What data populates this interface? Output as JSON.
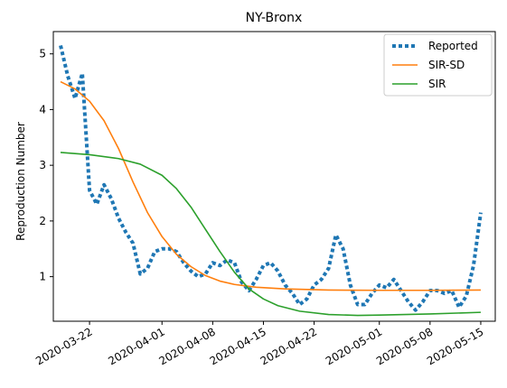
{
  "chart_data": {
    "type": "line",
    "title": "NY-Bronx",
    "xlabel": "",
    "ylabel": "Reproduction Number",
    "x_tick_labels": [
      "2020-03-22",
      "2020-04-01",
      "2020-04-08",
      "2020-04-15",
      "2020-04-22",
      "2020-05-01",
      "2020-05-08",
      "2020-05-15"
    ],
    "x_ticks": [
      "2020-03-22",
      "2020-04-01",
      "2020-04-08",
      "2020-04-15",
      "2020-04-22",
      "2020-05-01",
      "2020-05-08",
      "2020-05-15"
    ],
    "xlim": [
      "2020-03-17",
      "2020-05-17"
    ],
    "y_ticks": [
      1,
      2,
      3,
      4,
      5
    ],
    "ylim": [
      0.2,
      5.4
    ],
    "grid": false,
    "legend_position": "top-right",
    "series": [
      {
        "name": "Reported",
        "color": "#1f77b4",
        "style": "dotted",
        "points": [
          [
            "2020-03-18",
            5.15
          ],
          [
            "2020-03-19",
            4.6
          ],
          [
            "2020-03-20",
            4.2
          ],
          [
            "2020-03-21",
            4.65
          ],
          [
            "2020-03-22",
            2.55
          ],
          [
            "2020-03-23",
            2.3
          ],
          [
            "2020-03-24",
            2.65
          ],
          [
            "2020-03-25",
            2.4
          ],
          [
            "2020-03-26",
            2.05
          ],
          [
            "2020-03-27",
            1.8
          ],
          [
            "2020-03-28",
            1.6
          ],
          [
            "2020-03-29",
            1.05
          ],
          [
            "2020-03-30",
            1.15
          ],
          [
            "2020-03-31",
            1.45
          ],
          [
            "2020-04-01",
            1.5
          ],
          [
            "2020-04-02",
            1.5
          ],
          [
            "2020-04-03",
            1.45
          ],
          [
            "2020-04-04",
            1.25
          ],
          [
            "2020-04-05",
            1.1
          ],
          [
            "2020-04-06",
            1.0
          ],
          [
            "2020-04-07",
            1.05
          ],
          [
            "2020-04-08",
            1.25
          ],
          [
            "2020-04-09",
            1.2
          ],
          [
            "2020-04-10",
            1.3
          ],
          [
            "2020-04-11",
            1.25
          ],
          [
            "2020-04-12",
            0.9
          ],
          [
            "2020-04-13",
            0.75
          ],
          [
            "2020-04-14",
            0.95
          ],
          [
            "2020-04-15",
            1.2
          ],
          [
            "2020-04-16",
            1.25
          ],
          [
            "2020-04-17",
            1.1
          ],
          [
            "2020-04-18",
            0.85
          ],
          [
            "2020-04-19",
            0.7
          ],
          [
            "2020-04-20",
            0.5
          ],
          [
            "2020-04-21",
            0.6
          ],
          [
            "2020-04-22",
            0.85
          ],
          [
            "2020-04-23",
            0.95
          ],
          [
            "2020-04-24",
            1.15
          ],
          [
            "2020-04-25",
            1.75
          ],
          [
            "2020-04-26",
            1.5
          ],
          [
            "2020-04-27",
            0.85
          ],
          [
            "2020-04-28",
            0.5
          ],
          [
            "2020-04-29",
            0.5
          ],
          [
            "2020-04-30",
            0.7
          ],
          [
            "2020-05-01",
            0.85
          ],
          [
            "2020-05-02",
            0.8
          ],
          [
            "2020-05-03",
            0.95
          ],
          [
            "2020-05-04",
            0.75
          ],
          [
            "2020-05-05",
            0.55
          ],
          [
            "2020-05-06",
            0.4
          ],
          [
            "2020-05-07",
            0.55
          ],
          [
            "2020-05-08",
            0.75
          ],
          [
            "2020-05-09",
            0.75
          ],
          [
            "2020-05-10",
            0.7
          ],
          [
            "2020-05-11",
            0.75
          ],
          [
            "2020-05-12",
            0.45
          ],
          [
            "2020-05-13",
            0.65
          ],
          [
            "2020-05-14",
            1.2
          ],
          [
            "2020-05-15",
            2.15
          ]
        ]
      },
      {
        "name": "SIR-SD",
        "color": "#ff7f0e",
        "style": "solid",
        "points": [
          [
            "2020-03-18",
            4.5
          ],
          [
            "2020-03-20",
            4.37
          ],
          [
            "2020-03-22",
            4.15
          ],
          [
            "2020-03-24",
            3.8
          ],
          [
            "2020-03-26",
            3.3
          ],
          [
            "2020-03-28",
            2.7
          ],
          [
            "2020-03-30",
            2.15
          ],
          [
            "2020-04-01",
            1.72
          ],
          [
            "2020-04-03",
            1.4
          ],
          [
            "2020-04-05",
            1.18
          ],
          [
            "2020-04-07",
            1.02
          ],
          [
            "2020-04-09",
            0.92
          ],
          [
            "2020-04-11",
            0.86
          ],
          [
            "2020-04-14",
            0.81
          ],
          [
            "2020-04-18",
            0.78
          ],
          [
            "2020-04-24",
            0.76
          ],
          [
            "2020-05-01",
            0.755
          ],
          [
            "2020-05-08",
            0.755
          ],
          [
            "2020-05-15",
            0.76
          ]
        ]
      },
      {
        "name": "SIR",
        "color": "#2ca02c",
        "style": "solid",
        "points": [
          [
            "2020-03-18",
            3.23
          ],
          [
            "2020-03-22",
            3.19
          ],
          [
            "2020-03-26",
            3.12
          ],
          [
            "2020-03-29",
            3.02
          ],
          [
            "2020-04-01",
            2.82
          ],
          [
            "2020-04-03",
            2.58
          ],
          [
            "2020-04-05",
            2.25
          ],
          [
            "2020-04-07",
            1.85
          ],
          [
            "2020-04-09",
            1.45
          ],
          [
            "2020-04-11",
            1.08
          ],
          [
            "2020-04-13",
            0.78
          ],
          [
            "2020-04-15",
            0.6
          ],
          [
            "2020-04-17",
            0.48
          ],
          [
            "2020-04-20",
            0.38
          ],
          [
            "2020-04-24",
            0.32
          ],
          [
            "2020-04-28",
            0.305
          ],
          [
            "2020-05-01",
            0.31
          ],
          [
            "2020-05-08",
            0.33
          ],
          [
            "2020-05-15",
            0.36
          ]
        ]
      }
    ]
  }
}
